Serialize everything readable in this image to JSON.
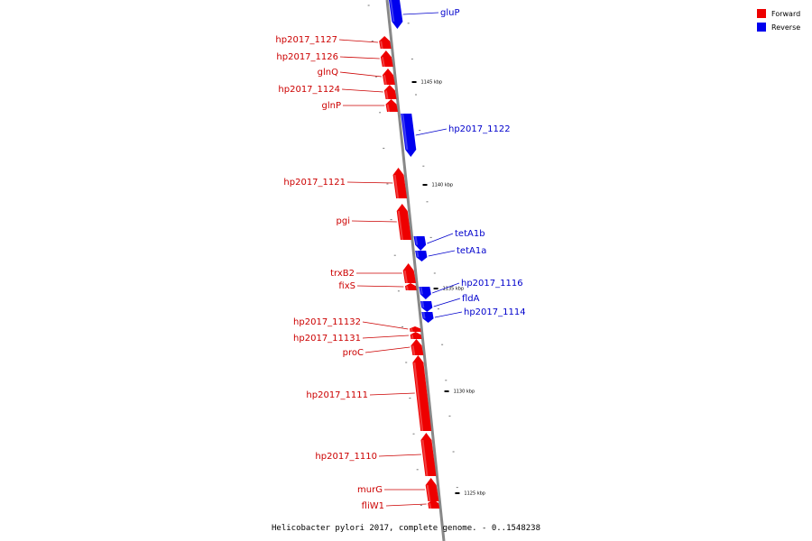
{
  "caption": "Helicobacter pylori 2017, complete genome. - 0..1548238",
  "legend": {
    "placement": "top-right",
    "items": [
      {
        "label": "Forward",
        "color": "#ee0000"
      },
      {
        "label": "Reverse",
        "color": "#0000ee"
      }
    ]
  },
  "colors": {
    "forward": "#ee0000",
    "forward_text": "#cc0000",
    "reverse": "#0000ee",
    "reverse_text": "#0000cc",
    "axis": "#888888"
  },
  "axis_ticks": [
    {
      "label": "1145 kbp",
      "kbp": 1145
    },
    {
      "label": "1140 kbp",
      "kbp": 1140
    },
    {
      "label": "1135 kbp",
      "kbp": 1135
    },
    {
      "label": "1130 kbp",
      "kbp": 1130
    },
    {
      "label": "1125 kbp",
      "kbp": 1125
    }
  ],
  "genes": [
    {
      "name": "gluP",
      "strand": "reverse"
    },
    {
      "name": "hp2017_1127",
      "strand": "forward"
    },
    {
      "name": "hp2017_1126",
      "strand": "forward"
    },
    {
      "name": "glnQ",
      "strand": "forward"
    },
    {
      "name": "hp2017_1124",
      "strand": "forward"
    },
    {
      "name": "glnP",
      "strand": "forward"
    },
    {
      "name": "hp2017_1122",
      "strand": "reverse"
    },
    {
      "name": "hp2017_1121",
      "strand": "forward"
    },
    {
      "name": "pgi",
      "strand": "forward"
    },
    {
      "name": "tetA1b",
      "strand": "reverse"
    },
    {
      "name": "tetA1a",
      "strand": "reverse"
    },
    {
      "name": "trxB2",
      "strand": "forward"
    },
    {
      "name": "fixS",
      "strand": "forward"
    },
    {
      "name": "hp2017_1116",
      "strand": "reverse"
    },
    {
      "name": "fldA",
      "strand": "reverse"
    },
    {
      "name": "hp2017_1114",
      "strand": "reverse"
    },
    {
      "name": "hp2017_11132",
      "strand": "forward"
    },
    {
      "name": "hp2017_11131",
      "strand": "forward"
    },
    {
      "name": "proC",
      "strand": "forward"
    },
    {
      "name": "hp2017_1111",
      "strand": "forward"
    },
    {
      "name": "hp2017_1110",
      "strand": "forward"
    },
    {
      "name": "murG",
      "strand": "forward"
    },
    {
      "name": "fliW1",
      "strand": "forward"
    }
  ]
}
